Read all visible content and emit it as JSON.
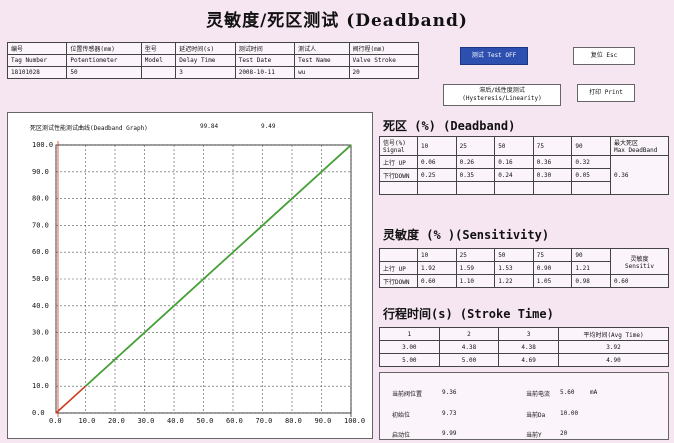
{
  "title": "灵敏度/死区测试  (Deadband)",
  "info_table": {
    "headers": [
      "编号",
      "位置传感器(mm)",
      "型号",
      "延迟时间(s)",
      "测试时间",
      "测试人",
      "阀行程(mm)"
    ],
    "subheaders": [
      "Tag Number",
      "Potentiometer",
      "Model",
      "Delay Time",
      "Test Date",
      "Test Name",
      "Valve Stroke"
    ],
    "values": [
      "18101028",
      "50",
      "",
      "3",
      "2008-10-11",
      "wu",
      "20"
    ]
  },
  "buttons": {
    "test": "测试 Test OFF",
    "reset": "复位 Esc",
    "hysteresis_line1": "滞后/线性度测试",
    "hysteresis_line2": "(Hysteresis/Linearity)",
    "print": "打印 Print"
  },
  "graph": {
    "header_label": "死区测试性能测试曲线(Deadband Graph)",
    "readout_1": "99.84",
    "readout_2": "9.49"
  },
  "chart_data": {
    "type": "line",
    "xlim": [
      0,
      100
    ],
    "ylim": [
      0,
      100
    ],
    "x_ticks": [
      "0.0",
      "10.0",
      "20.0",
      "30.0",
      "40.0",
      "50.0",
      "60.0",
      "70.0",
      "80.0",
      "90.0",
      "100.0"
    ],
    "y_ticks": [
      "0.0",
      "10.0",
      "20.0",
      "30.0",
      "40.0",
      "50.0",
      "60.0",
      "70.0",
      "80.0",
      "90.0",
      "100.0"
    ],
    "grid": true,
    "series": [
      {
        "color": "#d03a1e",
        "x": [
          0,
          10,
          100
        ],
        "y": [
          0,
          10,
          100
        ]
      },
      {
        "color": "#38a838",
        "x": [
          10,
          100
        ],
        "y": [
          10,
          100
        ]
      }
    ]
  },
  "deadband": {
    "heading": "死区 (%) (Deadband)",
    "signal_label": [
      "信号(%)",
      "Signal"
    ],
    "signals": [
      "10",
      "25",
      "50",
      "75",
      "90"
    ],
    "up_label": "上行 UP",
    "up_values": [
      "0.06",
      "0.26",
      "0.16",
      "0.36",
      "0.32"
    ],
    "down_label": "下行DOWN",
    "down_values": [
      "0.25",
      "0.35",
      "0.24",
      "0.30",
      "0.05"
    ],
    "max_label": [
      "最大死区",
      "Max DeadBand"
    ],
    "max_value": "0.36"
  },
  "sensitivity": {
    "heading": "灵敏度  (% )(Sensitivity)",
    "signals": [
      "10",
      "25",
      "50",
      "75",
      "90"
    ],
    "up_label": "上行 UP",
    "up_values": [
      "1.92",
      "1.59",
      "1.53",
      "0.90",
      "1.21"
    ],
    "down_label": "下行DOWN",
    "down_values": [
      "0.60",
      "1.10",
      "1.22",
      "1.05",
      "0.98"
    ],
    "sens_label": [
      "灵敏度",
      "Sensitiv"
    ],
    "sens_value": "0.60"
  },
  "stroke_time": {
    "heading": "行程时间(s) (Stroke Time)",
    "headers": [
      "1",
      "2",
      "3",
      "平均时间(Avg Time)"
    ],
    "rows": [
      [
        "3.00",
        "4.38",
        "4.38",
        "3.92"
      ],
      [
        "5.00",
        "5.00",
        "4.69",
        "4.90"
      ]
    ]
  },
  "readings": {
    "valve_pos_label": "当前阀位置",
    "valve_pos_value": "9.36",
    "current_label": "当前电流",
    "current_value": "5.60",
    "current_unit": "mA",
    "initial_label": "初始位",
    "initial_value": "9.73",
    "da_label": "当前Da",
    "da_value": "10.00",
    "start_label": "启动位",
    "start_value": "9.99",
    "y_label": "当前Y",
    "y_value": "20"
  }
}
